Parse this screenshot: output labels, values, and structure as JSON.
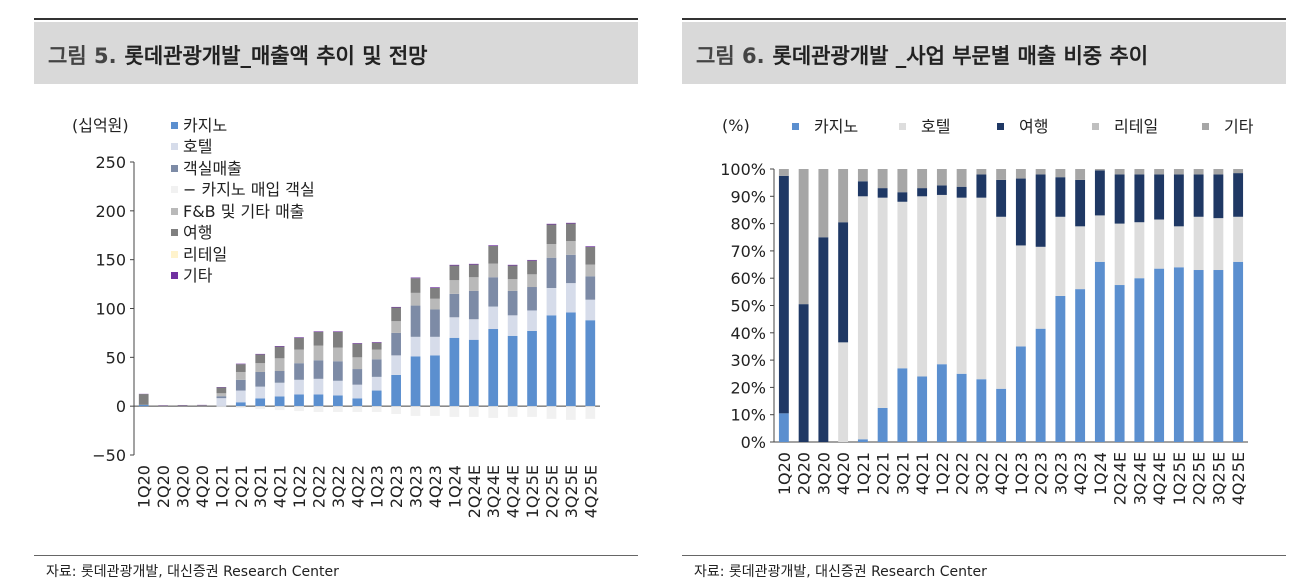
{
  "figures": [
    {
      "number": "그림 5.",
      "title": "롯데관광개발_매출액 추이 및 전망",
      "source": "자료: 롯데관광개발, 대신증권 Research Center"
    },
    {
      "number": "그림 6.",
      "title": "롯데관광개발 _사업 부문별 매출 비중 추이",
      "source": "자료: 롯데관광개발, 대신증권 Research Center"
    }
  ],
  "chart_data": [
    {
      "type": "bar",
      "stacked": true,
      "ylabel": "(십억원)",
      "ylim": [
        -50,
        250
      ],
      "yticks": [
        -50,
        0,
        50,
        100,
        150,
        200,
        250
      ],
      "legend_position": "top-left",
      "categories": [
        "1Q20",
        "2Q20",
        "3Q20",
        "4Q20",
        "1Q21",
        "2Q21",
        "3Q21",
        "4Q21",
        "1Q22",
        "2Q22",
        "3Q22",
        "4Q22",
        "1Q23",
        "2Q23",
        "3Q23",
        "4Q23",
        "1Q24",
        "2Q24E",
        "3Q24E",
        "4Q24E",
        "1Q25E",
        "2Q25E",
        "3Q25E",
        "4Q25E"
      ],
      "series": [
        {
          "name": "카지노",
          "color": "#5b8fcf",
          "values": [
            1.4,
            0,
            0,
            0,
            0.2,
            4,
            8,
            10,
            12,
            12,
            11,
            8,
            16,
            32,
            51,
            52,
            70,
            68,
            79,
            72,
            77,
            93,
            96,
            88
          ]
        },
        {
          "name": "호텔",
          "color": "#d6dcea",
          "values": [
            0,
            0,
            0,
            0,
            8,
            12,
            12,
            14,
            15,
            16,
            15,
            14,
            14,
            20,
            20,
            19,
            21,
            21,
            23,
            21,
            21,
            28,
            30,
            21
          ]
        },
        {
          "name": "객실매출",
          "color": "#7d8ba6",
          "values": [
            0,
            0,
            0,
            0,
            2,
            11,
            15,
            12,
            17,
            19,
            20,
            16,
            18,
            23,
            32,
            28,
            24,
            29,
            30,
            25,
            24,
            31,
            29,
            24
          ]
        },
        {
          "name": "− 카지노 매입 객실",
          "color": "#f1f1f1",
          "values": [
            0,
            0,
            0,
            0,
            -1,
            -2,
            -3,
            -4,
            -5,
            -6,
            -6,
            -6,
            -6,
            -8,
            -10,
            -10,
            -11,
            -11,
            -12,
            -11,
            -11,
            -13,
            -14,
            -13
          ]
        },
        {
          "name": "F&B 및 기타 매출",
          "color": "#b9b9b9",
          "values": [
            0,
            0,
            0,
            0,
            3,
            8,
            9,
            13,
            14,
            15,
            14,
            12,
            10,
            12,
            13,
            11,
            14,
            14,
            14,
            12,
            13,
            14,
            14,
            12
          ]
        },
        {
          "name": "여행",
          "color": "#7f7f7f",
          "values": [
            11,
            0.6,
            0.9,
            1,
            6,
            8,
            9,
            12,
            12,
            14,
            16,
            14,
            7,
            14,
            15,
            11,
            15,
            13,
            18,
            14,
            14,
            20,
            18,
            18
          ]
        },
        {
          "name": "리테일",
          "color": "#fff3cc",
          "values": [
            0,
            0,
            0,
            0,
            0,
            0,
            0,
            0,
            0,
            0,
            0,
            0,
            0,
            0,
            0,
            0,
            0,
            0,
            0,
            0,
            0,
            0,
            0,
            0
          ]
        },
        {
          "name": "기타",
          "color": "#7030a0",
          "values": [
            0.2,
            0.3,
            0.3,
            0.3,
            0.4,
            0.5,
            0.5,
            0.6,
            0.6,
            0.6,
            0.6,
            0.6,
            0.6,
            0.6,
            0.7,
            0.7,
            0.7,
            0.7,
            0.7,
            0.7,
            0.7,
            0.7,
            0.7,
            0.7
          ]
        }
      ]
    },
    {
      "type": "bar",
      "stacked": true,
      "ylabel": "(%)",
      "ylim": [
        0,
        100
      ],
      "yticks": [
        0,
        10,
        20,
        30,
        40,
        50,
        60,
        70,
        80,
        90,
        100
      ],
      "ytick_suffix": "%",
      "legend_position": "top",
      "categories": [
        "1Q20",
        "2Q20",
        "3Q20",
        "4Q20",
        "1Q21",
        "2Q21",
        "3Q21",
        "4Q21",
        "1Q22",
        "2Q22",
        "3Q22",
        "4Q22",
        "1Q23",
        "2Q23",
        "3Q23",
        "4Q23",
        "1Q24",
        "2Q24E",
        "3Q24E",
        "4Q24E",
        "1Q25E",
        "2Q25E",
        "3Q25E",
        "4Q25E"
      ],
      "series": [
        {
          "name": "카지노",
          "color": "#5b8fcf",
          "values": [
            10.5,
            0,
            0,
            0,
            1,
            12.5,
            27,
            24,
            28.5,
            25,
            23,
            19.5,
            35,
            41.5,
            53.5,
            56,
            66,
            57.5,
            60,
            63.5,
            64,
            63,
            63,
            66
          ]
        },
        {
          "name": "호텔",
          "color": "#dddddd",
          "values": [
            0,
            0,
            0,
            36.5,
            89,
            77,
            61,
            66,
            62,
            64.5,
            66.5,
            63,
            37,
            30,
            29,
            23,
            17,
            22.5,
            20.5,
            18,
            15,
            19.5,
            19,
            16.5
          ]
        },
        {
          "name": "여행",
          "color": "#1f3864",
          "values": [
            87,
            50.5,
            75,
            44,
            5.5,
            3.5,
            3.5,
            3,
            3.5,
            4,
            8.5,
            13.5,
            24.5,
            26.5,
            14.5,
            17,
            16.5,
            18,
            17.5,
            16.5,
            19,
            15.5,
            16,
            16
          ]
        },
        {
          "name": "리테일",
          "color": "#bfbfbf",
          "values": [
            0,
            0,
            0,
            0,
            0,
            0,
            0,
            0,
            0,
            0,
            0,
            0,
            0,
            0,
            0,
            0,
            0,
            0,
            0,
            0,
            0,
            0,
            0,
            0
          ]
        },
        {
          "name": "기타",
          "color": "#a6a6a6",
          "values": [
            2.5,
            49.5,
            25,
            19.5,
            4.5,
            7,
            8.5,
            7,
            6,
            6.5,
            2,
            4,
            3.5,
            2,
            3,
            4,
            0.5,
            2,
            2,
            2,
            2,
            2,
            2,
            1.5
          ]
        }
      ]
    }
  ]
}
